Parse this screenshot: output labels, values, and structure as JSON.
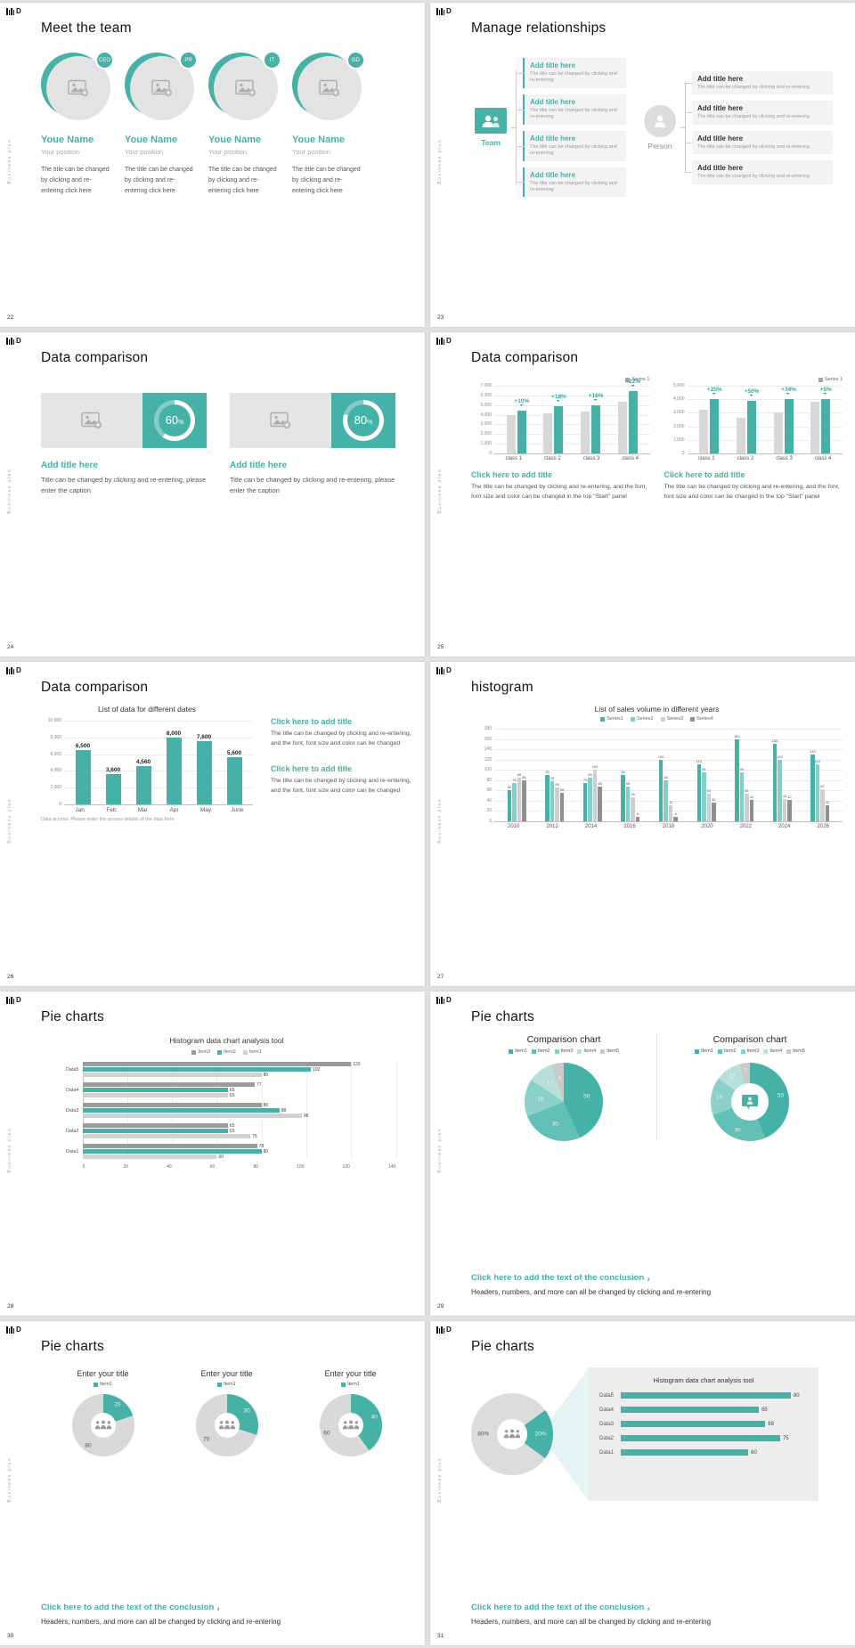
{
  "colors": {
    "accent": "#45b1a7",
    "light_gray": "#e3e3e3",
    "mid_gray": "#9b9b9b",
    "dark_text": "#141414"
  },
  "common": {
    "vertical_text": "Business plan",
    "logo_letter": "D"
  },
  "icons": {
    "image-placeholder-icon": "picture-with-plus",
    "team-icon": "two-people",
    "person-icon": "person-silhouette",
    "person-chat-icon": "person-in-speech-bubble",
    "people-icon": "three-people-group"
  },
  "slides": {
    "s22": {
      "page": "22",
      "title": "Meet the team",
      "members": [
        {
          "badge": "CEO",
          "name": "Youe Name",
          "position": "Your position",
          "desc": "The title can be changed by clicking and re-entering click here"
        },
        {
          "badge": "PR",
          "name": "Youe Name",
          "position": "Your position",
          "desc": "The title can be changed by clicking and re-entering click here"
        },
        {
          "badge": "IT",
          "name": "Youe Name",
          "position": "Your position",
          "desc": "The title can be changed by clicking and re-entering click here"
        },
        {
          "badge": "GD",
          "name": "Youe Name",
          "position": "Your position",
          "desc": "The title can be changed by clicking and re-entering click here"
        }
      ]
    },
    "s23": {
      "page": "23",
      "title": "Manage relationships",
      "team_label": "Team",
      "person_label": "Person",
      "left": {
        "variant": "teal",
        "items": [
          {
            "title": "Add title here",
            "desc": "The title can be changed by clicking and re-entering"
          },
          {
            "title": "Add title here",
            "desc": "The title can be changed by clicking and re-entering"
          },
          {
            "title": "Add title here",
            "desc": "The title can be changed by clicking and re-entering"
          },
          {
            "title": "Add title here",
            "desc": "The title can be changed by clicking and re-entering"
          }
        ]
      },
      "right": {
        "variant": "gray",
        "items": [
          {
            "title": "Add title here",
            "desc": "The title can be changed by clicking and re-entering"
          },
          {
            "title": "Add title here",
            "desc": "The title can be changed by clicking and re-entering"
          },
          {
            "title": "Add title here",
            "desc": "The title can be changed by clicking and re-entering"
          },
          {
            "title": "Add title here",
            "desc": "The title can be changed by clicking and re-entering"
          }
        ]
      }
    },
    "s24": {
      "page": "24",
      "title": "Data comparison",
      "panels": [
        {
          "percent": 60,
          "value": "60",
          "unit": "%",
          "title": "Add title here",
          "caption": "Title can be changed by clicking and re-entering, please enter the caption"
        },
        {
          "percent": 80,
          "value": "80",
          "unit": "%",
          "title": "Add title here",
          "caption": "Title can be changed by clicking and re-entering, please enter the caption"
        }
      ]
    },
    "s25": {
      "page": "25",
      "title": "Data comparison",
      "charts": [
        {
          "type": "vbar",
          "legend": [
            {
              "label": "Series 1",
              "color": "#a6a6a6"
            }
          ],
          "yticks": [
            "7,000",
            "6,000",
            "5,000",
            "4,000",
            "3,000",
            "2,000",
            "1,000",
            "0"
          ],
          "ymax": 7000,
          "categories": [
            "class 1",
            "class 2",
            "class 3",
            "class 4"
          ],
          "series": [
            {
              "name": "baseline",
              "color": "#d8d8d8",
              "values": [
                4000,
                4150,
                4300,
                5300
              ]
            },
            {
              "name": "Series 1",
              "color": "#45b1a7",
              "values": [
                4400,
                4900,
                5000,
                6470
              ]
            }
          ],
          "annotations": [
            "+10%",
            "+18%",
            "+16%",
            "+22%"
          ]
        },
        {
          "type": "vbar",
          "legend": [
            {
              "label": "Series 1",
              "color": "#a6a6a6"
            }
          ],
          "yticks": [
            "5,000",
            "4,000",
            "3,000",
            "2,000",
            "1,000",
            "0"
          ],
          "ymax": 5000,
          "categories": [
            "class 1",
            "class 2",
            "class 3",
            "class 4"
          ],
          "series": [
            {
              "name": "baseline",
              "color": "#d8d8d8",
              "values": [
                3200,
                2600,
                3000,
                3800
              ]
            },
            {
              "name": "Series 1",
              "color": "#45b1a7",
              "values": [
                4000,
                3900,
                4020,
                4000
              ]
            }
          ],
          "annotations": [
            "+25%",
            "+50%",
            "+34%",
            "+5%"
          ]
        }
      ],
      "captions": [
        {
          "title": "Click here to add title",
          "desc": "The title can be changed by clicking and re-entering, and the font, font size and color can be changed in the top \"Start\" panel"
        },
        {
          "title": "Click here to add title",
          "desc": "The title can be changed by clicking and re-entering, and the font, font size and color can be changed in the top \"Start\" panel"
        }
      ]
    },
    "s26": {
      "page": "26",
      "title": "Data comparison",
      "chart": {
        "type": "vbar",
        "title": "List of data for different dates",
        "yticks": [
          "10,000",
          "8,000",
          "6,000",
          "4,000",
          "2,000",
          "0"
        ],
        "ymax": 10000,
        "categories": [
          "Jan",
          "Feb",
          "Mar",
          "Apr",
          "May",
          "June"
        ],
        "series": [
          {
            "name": "data",
            "color": "#45b1a7",
            "values": [
              6500,
              3600,
              4560,
              8000,
              7600,
              5600
            ],
            "labels": [
              "6,500",
              "3,600",
              "4,560",
              "8,000",
              "7,600",
              "5,600"
            ]
          }
        ],
        "footnote": "Data access: Please enter the access details of the data here"
      },
      "sections": [
        {
          "title": "Click here to add title",
          "desc": "The title can be changed by clicking and re-entering, and the font, font size and color can be changed"
        },
        {
          "title": "Click here to add title",
          "desc": "The title can be changed by clicking and re-entering, and the font, font size and color can be changed"
        }
      ]
    },
    "s27": {
      "page": "27",
      "title": "histogram",
      "chart": {
        "type": "vbar",
        "title": "List of sales volume in different years",
        "legend": [
          {
            "label": "Series1",
            "color": "#45b1a7"
          },
          {
            "label": "Series2",
            "color": "#82cfc8"
          },
          {
            "label": "Series3",
            "color": "#cfcfcf"
          },
          {
            "label": "Series4",
            "color": "#8f8f8f"
          }
        ],
        "yticks": [
          "180",
          "160",
          "140",
          "120",
          "100",
          "80",
          "60",
          "40",
          "20",
          "0"
        ],
        "ymax": 180,
        "categories": [
          "2010",
          "2012",
          "2014",
          "2016",
          "2018",
          "2020",
          "2022",
          "2024",
          "2026"
        ],
        "series": [
          {
            "name": "Series1",
            "color": "#45b1a7",
            "values": [
              60,
              90,
              75,
              90,
              120,
              110,
              160,
              150,
              130
            ]
          },
          {
            "name": "Series2",
            "color": "#82cfc8",
            "values": [
              75,
              78,
              85,
              68,
              80,
              95,
              95,
              120,
              110
            ]
          },
          {
            "name": "Series3",
            "color": "#cfcfcf",
            "values": [
              85,
              65,
              100,
              46,
              32,
              54,
              53,
              43,
              62
            ]
          },
          {
            "name": "Series4",
            "color": "#8f8f8f",
            "values": [
              80,
              55,
              68,
              9,
              8,
              36,
              42,
              42,
              32
            ]
          }
        ],
        "show_values": true
      }
    },
    "s28": {
      "page": "28",
      "title": "Pie charts",
      "chart": {
        "type": "hbar",
        "title": "Histogram data chart analysis tool",
        "legend": [
          {
            "label": "Item3",
            "color": "#9b9b9b"
          },
          {
            "label": "Item2",
            "color": "#45b1a7"
          },
          {
            "label": "Item1",
            "color": "#d2d2d2"
          }
        ],
        "xticks": [
          "0",
          "20",
          "40",
          "60",
          "80",
          "100",
          "120",
          "140"
        ],
        "xmax": 140,
        "categories": [
          "Data5",
          "Data4",
          "Data3",
          "Data2",
          "Data1"
        ],
        "series": [
          {
            "name": "Item3",
            "color": "#9b9b9b",
            "values": [
              120,
              77,
              80,
              65,
              78
            ]
          },
          {
            "name": "Item2",
            "color": "#45b1a7",
            "values": [
              102,
              65,
              88,
              65,
              80
            ]
          },
          {
            "name": "Item1",
            "color": "#d2d2d2",
            "values": [
              80,
              65,
              98,
              75,
              60
            ]
          }
        ],
        "show_values": true
      }
    },
    "s29": {
      "page": "29",
      "title": "Pie charts",
      "charts": [
        {
          "type": "pie",
          "title": "Comparison chart",
          "legend": [
            {
              "label": "Item1",
              "color": "#45b1a7"
            },
            {
              "label": "Item2",
              "color": "#63c0b7"
            },
            {
              "label": "Item3",
              "color": "#8bd0c9"
            },
            {
              "label": "Item4",
              "color": "#b7e0db"
            },
            {
              "label": "Item5",
              "color": "#c9c9c9"
            }
          ],
          "values": [
            50,
            30,
            18,
            12,
            6
          ],
          "colors": [
            "#45b1a7",
            "#63c0b7",
            "#8bd0c9",
            "#b7e0db",
            "#c9c9c9"
          ],
          "label_r": 0.6
        },
        {
          "type": "donut",
          "title": "Comparison chart",
          "legend": [
            {
              "label": "Item1",
              "color": "#45b1a7"
            },
            {
              "label": "Item2",
              "color": "#63c0b7"
            },
            {
              "label": "Item3",
              "color": "#8bd0c9"
            },
            {
              "label": "Item4",
              "color": "#b7e0db"
            },
            {
              "label": "Item5",
              "color": "#c9c9c9"
            }
          ],
          "values": [
            50,
            30,
            18,
            12,
            5
          ],
          "colors": [
            "#45b1a7",
            "#63c0b7",
            "#8bd0c9",
            "#b7e0db",
            "#c9c9c9"
          ],
          "label_r": 0.8,
          "hole": "26%"
        }
      ],
      "conclusion": {
        "title": "Click here to add the text of the conclusion ，",
        "desc": "Headers, numbers, and more can all be changed by clicking and re-entering"
      }
    },
    "s30": {
      "page": "30",
      "title": "Pie charts",
      "charts": [
        {
          "type": "donut",
          "title": "Enter your title",
          "legend": [
            {
              "label": "Item1",
              "color": "#45b1a7"
            }
          ],
          "values": [
            20,
            80
          ],
          "colors": [
            "#45b1a7",
            "#d9d9d9"
          ],
          "label_r": 0.8,
          "hole": "30%",
          "dark_labels": [
            1
          ]
        },
        {
          "type": "donut",
          "title": "Enter your title",
          "legend": [
            {
              "label": "Item1",
              "color": "#45b1a7"
            }
          ],
          "values": [
            30,
            70
          ],
          "colors": [
            "#45b1a7",
            "#d9d9d9"
          ],
          "label_r": 0.8,
          "hole": "30%",
          "dark_labels": [
            1
          ]
        },
        {
          "type": "donut",
          "title": "Enter your title",
          "legend": [
            {
              "label": "Item1",
              "color": "#45b1a7"
            }
          ],
          "values": [
            40,
            60
          ],
          "colors": [
            "#45b1a7",
            "#d9d9d9"
          ],
          "label_r": 0.8,
          "hole": "30%",
          "dark_labels": [
            1
          ]
        }
      ],
      "conclusion": {
        "title": "Click here to add the text of the conclusion ，",
        "desc": "Headers, numbers, and more can all be changed by clicking and re-entering"
      }
    },
    "s31": {
      "page": "31",
      "title": "Pie charts",
      "donut": {
        "type": "donut",
        "values": [
          20,
          80
        ],
        "colors": [
          "#45b1a7",
          "#dcdcdc"
        ],
        "labels": [
          "20%",
          "80%"
        ],
        "label_r": 0.7,
        "hole": "32%",
        "from": 54,
        "dark_labels": [
          1
        ]
      },
      "panel": {
        "title": "Histogram data chart analysis tool",
        "categories": [
          "Data5",
          "Data4",
          "Data3",
          "Data2",
          "Data1"
        ],
        "values": [
          80,
          65,
          68,
          75,
          60
        ],
        "xmax": 88
      },
      "conclusion": {
        "title": "Click here to add the text of the conclusion ，",
        "desc": "Headers, numbers, and more can all be changed by clicking and re-entering"
      }
    }
  }
}
